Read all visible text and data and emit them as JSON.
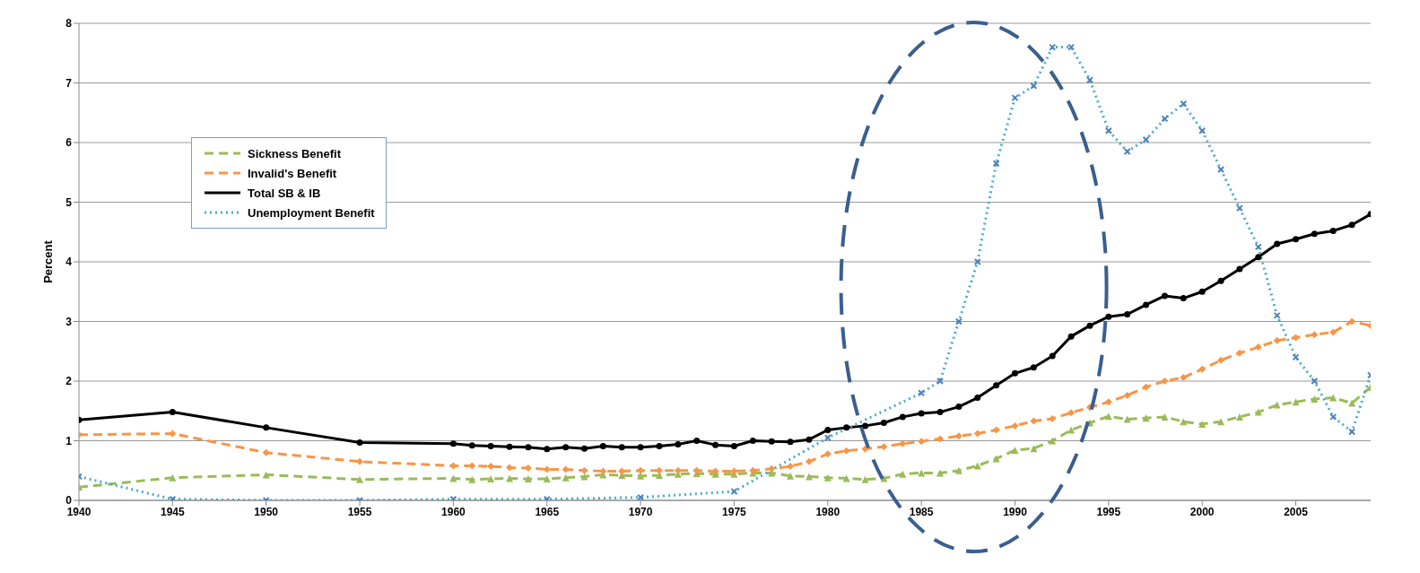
{
  "chart_data": {
    "type": "line",
    "ylabel": "Percent",
    "xlim": [
      1940,
      2009
    ],
    "xticks": [
      1940,
      1945,
      1950,
      1955,
      1960,
      1965,
      1970,
      1975,
      1980,
      1985,
      1990,
      1995,
      2000,
      2005
    ],
    "ylim": [
      0,
      8
    ],
    "yticks": [
      0,
      1,
      2,
      3,
      4,
      5,
      6,
      7,
      8
    ],
    "grid": "y",
    "legend": "top left",
    "series": [
      {
        "name": "Sickness Benefit",
        "color": "#9bbb59",
        "line_style": "dashed",
        "marker": "triangle",
        "x": [
          1940,
          1945,
          1950,
          1955,
          1960,
          1961,
          1962,
          1963,
          1964,
          1965,
          1966,
          1967,
          1968,
          1969,
          1970,
          1971,
          1972,
          1973,
          1974,
          1975,
          1976,
          1977,
          1978,
          1979,
          1980,
          1981,
          1982,
          1983,
          1984,
          1985,
          1986,
          1987,
          1988,
          1989,
          1990,
          1991,
          1992,
          1993,
          1994,
          1995,
          1996,
          1997,
          1998,
          1999,
          2000,
          2001,
          2002,
          2003,
          2004,
          2005,
          2006,
          2007,
          2008,
          2009
        ],
        "values": [
          0.22,
          0.38,
          0.43,
          0.35,
          0.37,
          0.35,
          0.36,
          0.37,
          0.36,
          0.36,
          0.38,
          0.4,
          0.43,
          0.42,
          0.41,
          0.42,
          0.44,
          0.45,
          0.44,
          0.44,
          0.46,
          0.46,
          0.41,
          0.4,
          0.38,
          0.37,
          0.35,
          0.37,
          0.44,
          0.46,
          0.46,
          0.5,
          0.58,
          0.7,
          0.84,
          0.87,
          1.0,
          1.18,
          1.3,
          1.41,
          1.36,
          1.38,
          1.4,
          1.32,
          1.28,
          1.32,
          1.4,
          1.48,
          1.6,
          1.65,
          1.7,
          1.72,
          1.63,
          1.9
        ]
      },
      {
        "name": "Invalid's Benefit",
        "color": "#f79646",
        "line_style": "dashed",
        "marker": "diamond",
        "x": [
          1940,
          1945,
          1950,
          1955,
          1960,
          1961,
          1962,
          1963,
          1964,
          1965,
          1966,
          1967,
          1968,
          1969,
          1970,
          1971,
          1972,
          1973,
          1974,
          1975,
          1976,
          1977,
          1978,
          1979,
          1980,
          1981,
          1982,
          1983,
          1984,
          1985,
          1986,
          1987,
          1988,
          1989,
          1990,
          1991,
          1992,
          1993,
          1994,
          1995,
          1996,
          1997,
          1998,
          1999,
          2000,
          2001,
          2002,
          2003,
          2004,
          2005,
          2006,
          2007,
          2008,
          2009
        ],
        "values": [
          1.1,
          1.12,
          0.8,
          0.65,
          0.58,
          0.58,
          0.57,
          0.55,
          0.54,
          0.52,
          0.52,
          0.5,
          0.49,
          0.49,
          0.5,
          0.5,
          0.5,
          0.5,
          0.49,
          0.49,
          0.5,
          0.53,
          0.57,
          0.65,
          0.78,
          0.83,
          0.86,
          0.9,
          0.95,
          0.99,
          1.03,
          1.08,
          1.12,
          1.18,
          1.25,
          1.33,
          1.37,
          1.47,
          1.56,
          1.65,
          1.76,
          1.9,
          2.0,
          2.06,
          2.2,
          2.35,
          2.47,
          2.57,
          2.68,
          2.73,
          2.78,
          2.82,
          3.0,
          2.93
        ]
      },
      {
        "name": "Total SB & IB",
        "color": "#000000",
        "line_style": "solid",
        "marker": "circle",
        "x": [
          1940,
          1945,
          1950,
          1955,
          1960,
          1961,
          1962,
          1963,
          1964,
          1965,
          1966,
          1967,
          1968,
          1969,
          1970,
          1971,
          1972,
          1973,
          1974,
          1975,
          1976,
          1977,
          1978,
          1979,
          1980,
          1981,
          1982,
          1983,
          1984,
          1985,
          1986,
          1987,
          1988,
          1989,
          1990,
          1991,
          1992,
          1993,
          1994,
          1995,
          1996,
          1997,
          1998,
          1999,
          2000,
          2001,
          2002,
          2003,
          2004,
          2005,
          2006,
          2007,
          2008,
          2009
        ],
        "values": [
          1.35,
          1.48,
          1.22,
          0.97,
          0.95,
          0.92,
          0.91,
          0.9,
          0.89,
          0.86,
          0.89,
          0.87,
          0.91,
          0.89,
          0.89,
          0.91,
          0.94,
          1.0,
          0.93,
          0.91,
          1.0,
          0.99,
          0.98,
          1.02,
          1.18,
          1.22,
          1.25,
          1.3,
          1.4,
          1.46,
          1.48,
          1.57,
          1.72,
          1.93,
          2.13,
          2.23,
          2.42,
          2.75,
          2.93,
          3.08,
          3.12,
          3.28,
          3.43,
          3.39,
          3.5,
          3.68,
          3.88,
          4.08,
          4.3,
          4.38,
          4.47,
          4.52,
          4.62,
          4.8
        ]
      },
      {
        "name": "Unemployment Benefit",
        "color": "#4bacc6",
        "line_style": "dotted",
        "marker": "cross",
        "x": [
          1940,
          1945,
          1950,
          1955,
          1960,
          1965,
          1970,
          1975,
          1980,
          1985,
          1986,
          1987,
          1988,
          1989,
          1990,
          1991,
          1992,
          1993,
          1994,
          1995,
          1996,
          1997,
          1998,
          1999,
          2000,
          2001,
          2002,
          2003,
          2004,
          2005,
          2006,
          2007,
          2008,
          2009
        ],
        "values": [
          0.4,
          0.02,
          0.0,
          0.0,
          0.02,
          0.02,
          0.05,
          0.15,
          1.05,
          1.8,
          2.0,
          3.0,
          4.0,
          5.65,
          6.75,
          6.95,
          7.6,
          7.6,
          7.05,
          6.2,
          5.85,
          6.05,
          6.4,
          6.65,
          6.2,
          5.55,
          4.9,
          4.25,
          3.1,
          2.4,
          2.0,
          1.4,
          1.15,
          2.1
        ]
      }
    ]
  }
}
